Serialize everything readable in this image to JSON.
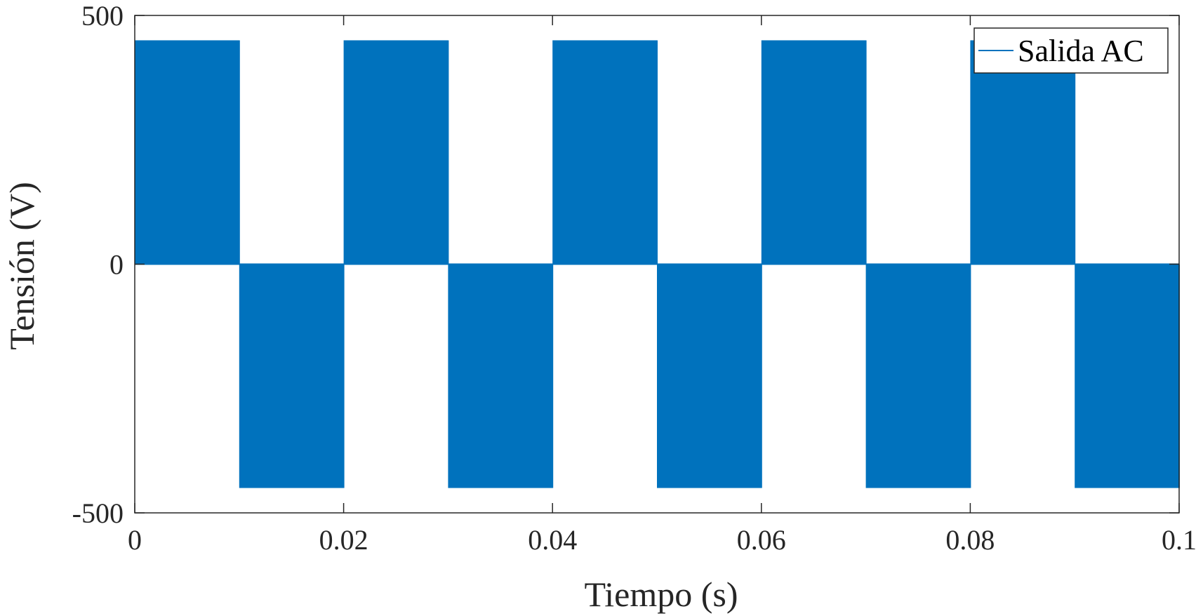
{
  "chart_data": {
    "type": "line",
    "title": "",
    "xlabel": "Tiempo (s)",
    "ylabel": "Tensión (V)",
    "xlim": [
      0,
      0.1
    ],
    "ylim": [
      -500,
      500
    ],
    "x_ticks": [
      0,
      0.02,
      0.04,
      0.06,
      0.08,
      0.1
    ],
    "x_tick_labels": [
      "0",
      "0.02",
      "0.04",
      "0.06",
      "0.08",
      "0.1"
    ],
    "y_ticks": [
      -500,
      0,
      500
    ],
    "y_tick_labels": [
      "-500",
      "0",
      "500"
    ],
    "grid": false,
    "legend_position": "top-right",
    "series": [
      {
        "name": "Salida AC",
        "color": "#0072BD",
        "description_of_shape": "high-frequency switching between 0 and ±450 V",
        "x": [
          0,
          0.01,
          0.01,
          0.02,
          0.02,
          0.03,
          0.03,
          0.04,
          0.04,
          0.05,
          0.05,
          0.06,
          0.06,
          0.07,
          0.07,
          0.08,
          0.08,
          0.09,
          0.09,
          0.1
        ],
        "y": [
          450,
          450,
          -450,
          -450,
          450,
          450,
          -450,
          -450,
          450,
          450,
          -450,
          -450,
          450,
          450,
          -450,
          -450,
          450,
          450,
          -450,
          -450
        ]
      }
    ]
  }
}
